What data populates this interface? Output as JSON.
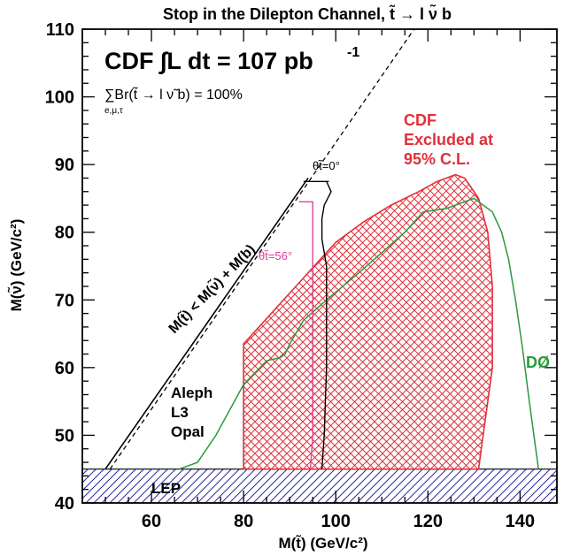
{
  "chart_data": {
    "type": "area",
    "title": "Stop in the Dilepton Channel, t̃ → l ν̃ b",
    "xlabel": "M(t̃) (GeV/c²)",
    "ylabel": "M(ν̃) (GeV/c²)",
    "xlim": [
      45,
      148
    ],
    "ylim": [
      40,
      110
    ],
    "xticks": [
      60,
      80,
      100,
      120,
      140
    ],
    "yticks": [
      40,
      50,
      60,
      70,
      80,
      90,
      100,
      110
    ],
    "grid": false,
    "annotations": {
      "headline": "CDF ∫L dt = 107 pb",
      "headline_sup": "-1",
      "br_sum": "∑Br(t̃ → l ν̃ b) = 100%",
      "br_sub": "e,μ,τ",
      "kinematic_limit": "M(t̃) < M(ν̃) + M(b)",
      "cdf_excluded": [
        "CDF",
        "Excluded at",
        "95% C.L."
      ],
      "theta0": "θt̃=0°",
      "theta56": "θt̃=56°",
      "lep_experiments": [
        "Aleph",
        "L3",
        "Opal"
      ],
      "lep": "LEP",
      "d0": "DØ"
    },
    "colors": {
      "cdf": "#e0303a",
      "d0": "#2a9a3c",
      "theta56": "#e0409a",
      "lep": "#2a2aa0",
      "ink": "#000000"
    },
    "series": [
      {
        "name": "CDF",
        "kind": "excluded-region",
        "x": [
          80,
          80,
          86,
          92,
          96,
          100,
          106,
          112,
          118,
          122,
          126,
          128,
          131,
          133,
          134,
          134,
          131,
          80
        ],
        "y": [
          45,
          63.5,
          68,
          72.5,
          75.5,
          78.5,
          81.5,
          84,
          86,
          87.5,
          88.5,
          88,
          85,
          80,
          72,
          60,
          45,
          45
        ]
      },
      {
        "name": "DØ",
        "kind": "limit-curve",
        "x": [
          66,
          70,
          74,
          78,
          80,
          85,
          88,
          89,
          90,
          93,
          98,
          105,
          110,
          115,
          119,
          124,
          130,
          132,
          134,
          136,
          137.5,
          139,
          140.5,
          142,
          143,
          144
        ],
        "y": [
          45,
          46,
          50,
          55,
          57.5,
          61,
          61.5,
          62,
          63.5,
          67,
          70,
          74,
          77,
          80,
          83,
          83.5,
          85,
          84,
          83,
          80,
          76,
          70,
          63,
          55,
          50,
          45
        ]
      },
      {
        "name": "θt̃=0°",
        "kind": "limit-curve",
        "x": [
          97,
          97.5,
          98,
          98,
          98,
          97.5,
          97,
          97,
          97.5,
          99,
          98,
          95,
          93,
          93,
          95,
          98.5
        ],
        "y": [
          45,
          50,
          60,
          70,
          75,
          77,
          79,
          82,
          84,
          86,
          87.5,
          87.5,
          87.5,
          87.5,
          87.5,
          87.5
        ]
      },
      {
        "name": "θt̃=56°",
        "kind": "limit-curve",
        "x": [
          94.5,
          95,
          95,
          95,
          95,
          95,
          92
        ],
        "y": [
          45,
          50,
          60,
          70,
          80,
          84.5,
          84.5
        ]
      },
      {
        "name": "LEP",
        "kind": "excluded-region",
        "x": [
          45,
          148,
          148,
          45
        ],
        "y": [
          40,
          40,
          45,
          45
        ]
      },
      {
        "name": "M(t̃) < M(ν̃) + M(b)",
        "kind": "kinematic-line",
        "x": [
          50,
          94
        ],
        "y": [
          45,
          88
        ]
      },
      {
        "name": "kinematic-dashed",
        "kind": "kinematic-line",
        "x": [
          51,
          117
        ],
        "y": [
          45,
          110
        ]
      }
    ]
  }
}
